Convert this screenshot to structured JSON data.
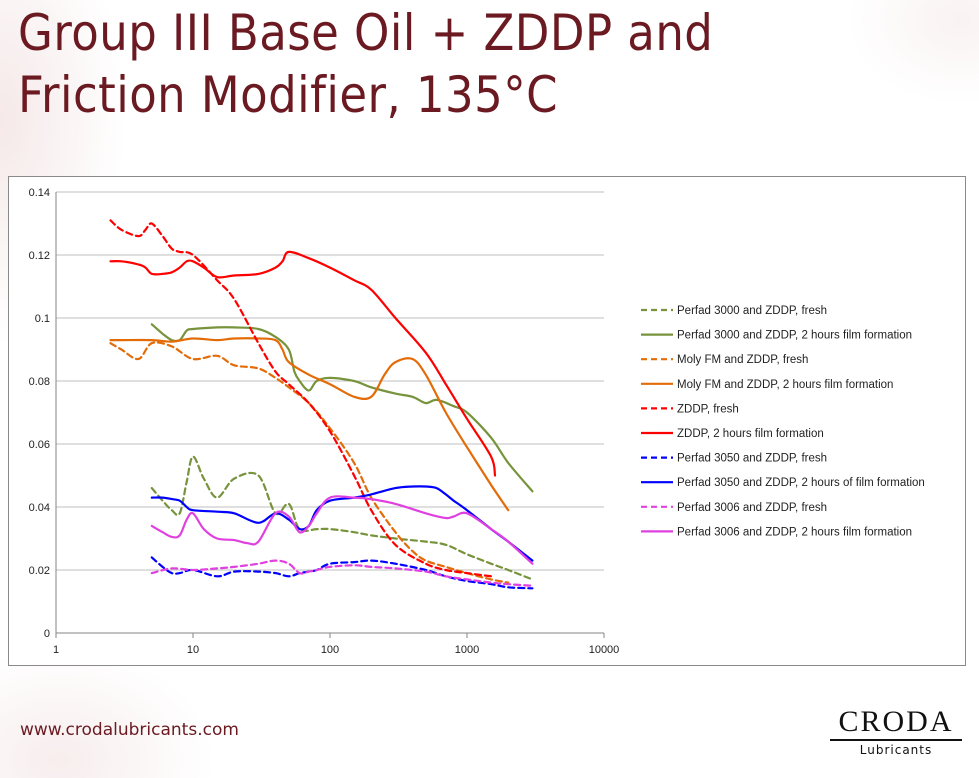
{
  "slide": {
    "title": "Group III Base Oil + ZDDP and Friction Modifier, 135°C",
    "url": "www.crodalubricants.com",
    "logo": {
      "name": "CRODA",
      "sub": "Lubricants"
    }
  },
  "chart_data": {
    "type": "line",
    "title": "",
    "xlabel": "",
    "ylabel": "",
    "xscale": "log",
    "xlim": [
      1,
      10000
    ],
    "ylim": [
      0,
      0.14
    ],
    "xticks": [
      1,
      10,
      100,
      1000,
      10000
    ],
    "xtick_labels": [
      "1",
      "10",
      "100",
      "1000",
      "10000"
    ],
    "yticks": [
      0,
      0.02,
      0.04,
      0.06,
      0.08,
      0.1,
      0.12,
      0.14
    ],
    "ytick_labels": [
      "0",
      "0.02",
      "0.04",
      "0.06",
      "0.08",
      "0.1",
      "0.12",
      "0.14"
    ],
    "grid": "horizontal",
    "legend_position": "right",
    "series": [
      {
        "name": "Perfad 3000 and ZDDP, fresh",
        "color": "#77933c",
        "dashed": true,
        "x": [
          5,
          6,
          7,
          8,
          9,
          10,
          12,
          15,
          20,
          30,
          40,
          50,
          60,
          80,
          100,
          150,
          200,
          300,
          500,
          700,
          1000,
          1500,
          2000,
          3000
        ],
        "y": [
          0.046,
          0.042,
          0.039,
          0.038,
          0.048,
          0.056,
          0.049,
          0.043,
          0.049,
          0.05,
          0.038,
          0.041,
          0.033,
          0.033,
          0.033,
          0.032,
          0.031,
          0.03,
          0.029,
          0.028,
          0.025,
          0.022,
          0.02,
          0.017
        ]
      },
      {
        "name": "Perfad 3000 and ZDDP, 2 hours film formation",
        "color": "#77933c",
        "dashed": false,
        "x": [
          5,
          6,
          7,
          8,
          9,
          10,
          15,
          20,
          30,
          40,
          50,
          55,
          60,
          70,
          80,
          100,
          150,
          200,
          300,
          400,
          500,
          600,
          800,
          1000,
          1500,
          2000,
          3000
        ],
        "y": [
          0.098,
          0.095,
          0.093,
          0.093,
          0.096,
          0.0965,
          0.097,
          0.097,
          0.0965,
          0.094,
          0.09,
          0.083,
          0.08,
          0.077,
          0.08,
          0.081,
          0.08,
          0.078,
          0.076,
          0.075,
          0.073,
          0.074,
          0.072,
          0.07,
          0.062,
          0.054,
          0.045
        ]
      },
      {
        "name": "Moly FM and ZDDP, fresh",
        "color": "#e36c09",
        "dashed": true,
        "x": [
          2.5,
          3,
          4,
          5,
          7,
          10,
          15,
          20,
          30,
          40,
          50,
          70,
          100,
          150,
          200,
          300,
          400,
          500,
          700,
          1000,
          1500,
          2000
        ],
        "y": [
          0.092,
          0.09,
          0.087,
          0.092,
          0.091,
          0.087,
          0.088,
          0.085,
          0.084,
          0.081,
          0.078,
          0.073,
          0.065,
          0.054,
          0.043,
          0.032,
          0.026,
          0.023,
          0.021,
          0.019,
          0.017,
          0.016
        ]
      },
      {
        "name": "Moly FM and ZDDP, 2 hours film formation",
        "color": "#e36c09",
        "dashed": false,
        "x": [
          2.5,
          3,
          5,
          7,
          10,
          15,
          20,
          30,
          40,
          45,
          50,
          70,
          100,
          150,
          200,
          250,
          300,
          400,
          500,
          700,
          1000,
          1500,
          2000
        ],
        "y": [
          0.093,
          0.093,
          0.093,
          0.0925,
          0.0935,
          0.093,
          0.0935,
          0.0935,
          0.093,
          0.09,
          0.086,
          0.082,
          0.079,
          0.075,
          0.075,
          0.082,
          0.086,
          0.087,
          0.082,
          0.07,
          0.059,
          0.047,
          0.039
        ]
      },
      {
        "name": "ZDDP, fresh",
        "color": "#ff0000",
        "dashed": true,
        "x": [
          2.5,
          3,
          4,
          4.5,
          5,
          6,
          7,
          8,
          10,
          15,
          20,
          30,
          40,
          50,
          70,
          100,
          150,
          200,
          300,
          500,
          700,
          1000,
          1500
        ],
        "y": [
          0.131,
          0.128,
          0.126,
          0.128,
          0.13,
          0.126,
          0.122,
          0.121,
          0.12,
          0.112,
          0.106,
          0.092,
          0.083,
          0.079,
          0.073,
          0.064,
          0.05,
          0.039,
          0.028,
          0.022,
          0.02,
          0.019,
          0.018
        ]
      },
      {
        "name": "ZDDP, 2 hours film formation",
        "color": "#ff0000",
        "dashed": false,
        "x": [
          2.5,
          3,
          4,
          4.5,
          5,
          6,
          7,
          8,
          9,
          10,
          12,
          15,
          20,
          30,
          40,
          45,
          50,
          70,
          100,
          150,
          200,
          300,
          500,
          700,
          1000,
          1500,
          1600
        ],
        "y": [
          0.118,
          0.118,
          0.117,
          0.116,
          0.114,
          0.114,
          0.1145,
          0.116,
          0.118,
          0.118,
          0.116,
          0.113,
          0.1135,
          0.114,
          0.116,
          0.118,
          0.121,
          0.119,
          0.116,
          0.112,
          0.109,
          0.1,
          0.089,
          0.079,
          0.068,
          0.056,
          0.05
        ]
      },
      {
        "name": "Perfad 3050 and ZDDP, fresh",
        "color": "#0000ff",
        "dashed": true,
        "x": [
          5,
          6,
          7,
          8,
          10,
          15,
          20,
          30,
          40,
          50,
          60,
          70,
          80,
          100,
          150,
          200,
          300,
          500,
          700,
          1000,
          1500,
          2000,
          3000
        ],
        "y": [
          0.024,
          0.021,
          0.019,
          0.019,
          0.02,
          0.018,
          0.0195,
          0.0195,
          0.019,
          0.018,
          0.019,
          0.0195,
          0.02,
          0.022,
          0.0225,
          0.023,
          0.022,
          0.02,
          0.018,
          0.0165,
          0.0155,
          0.0145,
          0.0142
        ]
      },
      {
        "name": "Perfad 3050 and ZDDP, 2 hours of film formation",
        "color": "#0000ff",
        "dashed": false,
        "x": [
          5,
          6,
          7,
          8,
          9,
          10,
          15,
          20,
          30,
          40,
          50,
          60,
          70,
          80,
          100,
          150,
          200,
          300,
          400,
          500,
          600,
          700,
          800,
          1000,
          1500,
          2000,
          3000
        ],
        "y": [
          0.043,
          0.043,
          0.0425,
          0.042,
          0.04,
          0.039,
          0.0385,
          0.038,
          0.035,
          0.038,
          0.036,
          0.033,
          0.034,
          0.039,
          0.042,
          0.043,
          0.044,
          0.046,
          0.0465,
          0.0465,
          0.046,
          0.044,
          0.042,
          0.039,
          0.033,
          0.029,
          0.023
        ]
      },
      {
        "name": "Perfad 3006 and ZDDP, fresh",
        "color": "#e040e0",
        "dashed": true,
        "x": [
          5,
          7,
          10,
          15,
          20,
          30,
          40,
          50,
          60,
          70,
          80,
          100,
          150,
          200,
          300,
          500,
          700,
          1000,
          1500,
          2000,
          3000
        ],
        "y": [
          0.019,
          0.0205,
          0.02,
          0.0205,
          0.021,
          0.022,
          0.023,
          0.022,
          0.019,
          0.0195,
          0.02,
          0.021,
          0.0215,
          0.021,
          0.0205,
          0.0195,
          0.018,
          0.017,
          0.016,
          0.0155,
          0.015
        ]
      },
      {
        "name": "Perfad 3006 and ZDDP, 2 hours film formation",
        "color": "#e040e0",
        "dashed": false,
        "x": [
          5,
          6,
          7,
          8,
          9,
          10,
          12,
          15,
          20,
          25,
          30,
          40,
          50,
          60,
          70,
          80,
          100,
          150,
          200,
          300,
          500,
          700,
          800,
          1000,
          1500,
          2000,
          3000
        ],
        "y": [
          0.034,
          0.032,
          0.0305,
          0.031,
          0.036,
          0.038,
          0.033,
          0.03,
          0.0295,
          0.0285,
          0.029,
          0.038,
          0.037,
          0.032,
          0.034,
          0.038,
          0.043,
          0.043,
          0.0425,
          0.041,
          0.038,
          0.0365,
          0.037,
          0.038,
          0.033,
          0.029,
          0.022
        ]
      }
    ]
  }
}
